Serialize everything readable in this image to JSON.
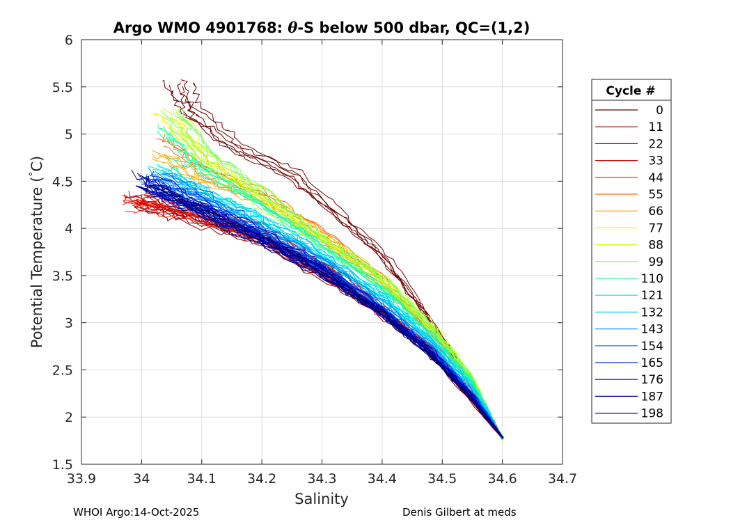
{
  "chart_data": {
    "type": "line",
    "title_prefix": "Argo WMO 4901768: ",
    "title_theta": "θ",
    "title_suffix": "-S below 500 dbar,  QC=(1,2)",
    "xlabel": "Salinity",
    "ylabel_main": "Potential Temperature (",
    "ylabel_deg": "°",
    "ylabel_end": "C)",
    "xlim": [
      33.9,
      34.7
    ],
    "ylim": [
      1.5,
      6
    ],
    "xticks": [
      33.9,
      34,
      34.1,
      34.2,
      34.3,
      34.4,
      34.5,
      34.6,
      34.7
    ],
    "xtick_labels": [
      "33.9",
      "34",
      "34.1",
      "34.2",
      "34.3",
      "34.4",
      "34.5",
      "34.6",
      "34.7"
    ],
    "yticks": [
      1.5,
      2,
      2.5,
      3,
      3.5,
      4,
      4.5,
      5,
      5.5,
      6
    ],
    "ytick_labels": [
      "1.5",
      "2",
      "2.5",
      "3",
      "3.5",
      "4",
      "4.5",
      "5",
      "5.5",
      "6"
    ],
    "grid": true,
    "legend": {
      "title": "Cycle #",
      "position": "outside-right",
      "entries": [
        {
          "label": "0",
          "color": "#6e0000"
        },
        {
          "label": "11",
          "color": "#8c0000"
        },
        {
          "label": "22",
          "color": "#b00000"
        },
        {
          "label": "33",
          "color": "#d40000"
        },
        {
          "label": "44",
          "color": "#f21800"
        },
        {
          "label": "55",
          "color": "#ff6a00"
        },
        {
          "label": "66",
          "color": "#ffaa00"
        },
        {
          "label": "77",
          "color": "#ffee00"
        },
        {
          "label": "88",
          "color": "#c8ff1e"
        },
        {
          "label": "99",
          "color": "#78ff50"
        },
        {
          "label": "110",
          "color": "#2dffa0"
        },
        {
          "label": "121",
          "color": "#00eed0"
        },
        {
          "label": "132",
          "color": "#00ccff"
        },
        {
          "label": "143",
          "color": "#0096ff"
        },
        {
          "label": "154",
          "color": "#0064ff"
        },
        {
          "label": "165",
          "color": "#0032e6"
        },
        {
          "label": "176",
          "color": "#0000c8"
        },
        {
          "label": "187",
          "color": "#00009a"
        },
        {
          "label": "198",
          "color": "#000078"
        }
      ]
    },
    "series_templates": [
      {
        "group": "0",
        "color": "#6e0000",
        "top": [
          34.06,
          5.5
        ],
        "pts": [
          [
            34.06,
            5.5
          ],
          [
            34.08,
            5.2
          ],
          [
            34.15,
            4.85
          ],
          [
            34.25,
            4.55
          ],
          [
            34.33,
            4.1
          ],
          [
            34.4,
            3.7
          ],
          [
            34.47,
            3.1
          ],
          [
            34.53,
            2.55
          ],
          [
            34.6,
            1.78
          ]
        ],
        "copies": 6
      },
      {
        "group": "11",
        "color": "#8c0000",
        "pts": [
          [
            34.0,
            4.3
          ],
          [
            34.05,
            4.2
          ],
          [
            34.12,
            4.05
          ],
          [
            34.2,
            3.9
          ],
          [
            34.3,
            3.5
          ],
          [
            34.38,
            3.2
          ],
          [
            34.47,
            2.75
          ],
          [
            34.6,
            1.78
          ]
        ],
        "copies": 5
      },
      {
        "group": "22",
        "color": "#b00000",
        "pts": [
          [
            34.0,
            4.3
          ],
          [
            34.1,
            4.15
          ],
          [
            34.2,
            3.95
          ],
          [
            34.28,
            3.65
          ],
          [
            34.38,
            3.2
          ],
          [
            34.46,
            2.8
          ],
          [
            34.53,
            2.4
          ],
          [
            34.6,
            1.78
          ]
        ],
        "copies": 5
      },
      {
        "group": "33",
        "color": "#d40000",
        "pts": [
          [
            33.98,
            4.3
          ],
          [
            34.05,
            4.2
          ],
          [
            34.15,
            4.0
          ],
          [
            34.25,
            3.75
          ],
          [
            34.33,
            3.45
          ],
          [
            34.4,
            3.1
          ],
          [
            34.48,
            2.75
          ],
          [
            34.6,
            1.78
          ]
        ],
        "copies": 7
      },
      {
        "group": "44",
        "color": "#f21800",
        "pts": [
          [
            33.99,
            4.25
          ],
          [
            34.06,
            4.2
          ],
          [
            34.16,
            4.0
          ],
          [
            34.26,
            3.7
          ],
          [
            34.36,
            3.35
          ],
          [
            34.43,
            3.0
          ],
          [
            34.5,
            2.6
          ],
          [
            34.6,
            1.78
          ]
        ],
        "copies": 6
      },
      {
        "group": "55",
        "color": "#ff6a00",
        "pts": [
          [
            34.04,
            4.9
          ],
          [
            34.1,
            4.6
          ],
          [
            34.2,
            4.35
          ],
          [
            34.3,
            3.95
          ],
          [
            34.4,
            3.45
          ],
          [
            34.47,
            2.95
          ],
          [
            34.53,
            2.5
          ],
          [
            34.6,
            1.78
          ]
        ],
        "copies": 4
      },
      {
        "group": "66",
        "color": "#ffaa00",
        "pts": [
          [
            34.03,
            4.8
          ],
          [
            34.1,
            4.55
          ],
          [
            34.2,
            4.3
          ],
          [
            34.3,
            3.9
          ],
          [
            34.4,
            3.4
          ],
          [
            34.48,
            2.95
          ],
          [
            34.54,
            2.45
          ],
          [
            34.6,
            1.78
          ]
        ],
        "copies": 5
      },
      {
        "group": "77",
        "color": "#ffee00",
        "pts": [
          [
            34.04,
            5.2
          ],
          [
            34.1,
            4.75
          ],
          [
            34.2,
            4.35
          ],
          [
            34.3,
            3.9
          ],
          [
            34.4,
            3.45
          ],
          [
            34.48,
            2.95
          ],
          [
            34.55,
            2.4
          ],
          [
            34.6,
            1.78
          ]
        ],
        "copies": 4
      },
      {
        "group": "88",
        "color": "#c8ff1e",
        "pts": [
          [
            34.05,
            5.15
          ],
          [
            34.12,
            4.65
          ],
          [
            34.22,
            4.2
          ],
          [
            34.32,
            3.8
          ],
          [
            34.42,
            3.35
          ],
          [
            34.5,
            2.85
          ],
          [
            34.55,
            2.4
          ],
          [
            34.6,
            1.76
          ]
        ],
        "copies": 5
      },
      {
        "group": "99",
        "color": "#78ff50",
        "pts": [
          [
            34.05,
            5.2
          ],
          [
            34.12,
            4.7
          ],
          [
            34.22,
            4.25
          ],
          [
            34.3,
            3.85
          ],
          [
            34.4,
            3.45
          ],
          [
            34.48,
            2.95
          ],
          [
            34.55,
            2.4
          ],
          [
            34.6,
            1.76
          ]
        ],
        "copies": 6
      },
      {
        "group": "110",
        "color": "#2dffa0",
        "pts": [
          [
            34.04,
            5.1
          ],
          [
            34.1,
            4.7
          ],
          [
            34.2,
            4.3
          ],
          [
            34.3,
            3.85
          ],
          [
            34.4,
            3.4
          ],
          [
            34.48,
            2.9
          ],
          [
            34.55,
            2.4
          ],
          [
            34.6,
            1.77
          ]
        ],
        "copies": 6
      },
      {
        "group": "121",
        "color": "#00eed0",
        "pts": [
          [
            34.03,
            4.7
          ],
          [
            34.1,
            4.45
          ],
          [
            34.2,
            4.15
          ],
          [
            34.3,
            3.75
          ],
          [
            34.4,
            3.3
          ],
          [
            34.48,
            2.85
          ],
          [
            34.55,
            2.35
          ],
          [
            34.6,
            1.77
          ]
        ],
        "copies": 6
      },
      {
        "group": "132",
        "color": "#00ccff",
        "pts": [
          [
            34.03,
            4.55
          ],
          [
            34.1,
            4.35
          ],
          [
            34.2,
            4.05
          ],
          [
            34.3,
            3.7
          ],
          [
            34.4,
            3.25
          ],
          [
            34.48,
            2.8
          ],
          [
            34.55,
            2.3
          ],
          [
            34.6,
            1.78
          ]
        ],
        "copies": 6
      },
      {
        "group": "143",
        "color": "#0096ff",
        "pts": [
          [
            34.02,
            4.55
          ],
          [
            34.1,
            4.3
          ],
          [
            34.2,
            4.0
          ],
          [
            34.3,
            3.65
          ],
          [
            34.4,
            3.2
          ],
          [
            34.48,
            2.75
          ],
          [
            34.55,
            2.25
          ],
          [
            34.6,
            1.78
          ]
        ],
        "copies": 6
      },
      {
        "group": "154",
        "color": "#0064ff",
        "pts": [
          [
            34.02,
            4.5
          ],
          [
            34.1,
            4.3
          ],
          [
            34.2,
            3.95
          ],
          [
            34.3,
            3.6
          ],
          [
            34.4,
            3.15
          ],
          [
            34.48,
            2.7
          ],
          [
            34.55,
            2.25
          ],
          [
            34.6,
            1.78
          ]
        ],
        "copies": 6
      },
      {
        "group": "165",
        "color": "#0032e6",
        "pts": [
          [
            34.02,
            4.45
          ],
          [
            34.1,
            4.25
          ],
          [
            34.2,
            3.95
          ],
          [
            34.3,
            3.6
          ],
          [
            34.4,
            3.15
          ],
          [
            34.48,
            2.7
          ],
          [
            34.55,
            2.25
          ],
          [
            34.6,
            1.78
          ]
        ],
        "copies": 7
      },
      {
        "group": "176",
        "color": "#0000c8",
        "pts": [
          [
            34.0,
            4.5
          ],
          [
            34.1,
            4.2
          ],
          [
            34.2,
            3.9
          ],
          [
            34.3,
            3.55
          ],
          [
            34.4,
            3.1
          ],
          [
            34.48,
            2.7
          ],
          [
            34.55,
            2.2
          ],
          [
            34.6,
            1.78
          ]
        ],
        "copies": 7
      },
      {
        "group": "187",
        "color": "#00009a",
        "pts": [
          [
            34.01,
            4.45
          ],
          [
            34.1,
            4.2
          ],
          [
            34.2,
            3.88
          ],
          [
            34.3,
            3.55
          ],
          [
            34.4,
            3.1
          ],
          [
            34.48,
            2.68
          ],
          [
            34.55,
            2.2
          ],
          [
            34.6,
            1.78
          ]
        ],
        "copies": 6
      },
      {
        "group": "198",
        "color": "#000078",
        "pts": [
          [
            34.01,
            4.5
          ],
          [
            34.1,
            4.2
          ],
          [
            34.2,
            3.9
          ],
          [
            34.3,
            3.55
          ],
          [
            34.4,
            3.12
          ],
          [
            34.48,
            2.68
          ],
          [
            34.55,
            2.2
          ],
          [
            34.6,
            1.78
          ]
        ],
        "copies": 6
      }
    ]
  },
  "footer": {
    "left": "WHOI Argo:14-Oct-2025",
    "right": "Denis Gilbert at meds"
  }
}
